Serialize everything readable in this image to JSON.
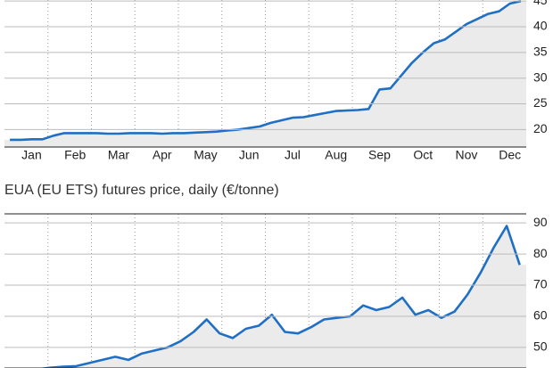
{
  "chart_data": [
    {
      "type": "line",
      "categories": [
        null,
        null,
        "Jan",
        null,
        null,
        null,
        "Feb",
        null,
        null,
        null,
        "Mar",
        null,
        null,
        null,
        "Apr",
        null,
        null,
        null,
        "May",
        null,
        null,
        null,
        "Jun",
        null,
        null,
        null,
        "Jul",
        null,
        null,
        null,
        "Aug",
        null,
        null,
        null,
        "Sep",
        null,
        null,
        null,
        "Oct",
        null,
        null,
        null,
        "Nov",
        null,
        null,
        null,
        "Dec",
        null
      ],
      "series": [
        {
          "color": "#1f6fc5",
          "values": [
            18.0,
            18.0,
            18.1,
            18.1,
            18.8,
            19.3,
            19.3,
            19.3,
            19.3,
            19.2,
            19.2,
            19.3,
            19.3,
            19.3,
            19.2,
            19.3,
            19.3,
            19.4,
            19.5,
            19.6,
            19.8,
            20.0,
            20.3,
            20.6,
            21.3,
            21.8,
            22.3,
            22.4,
            22.8,
            23.2,
            23.6,
            23.7,
            23.8,
            24.0,
            27.8,
            28.0,
            30.5,
            33.0,
            35.0,
            36.8,
            37.5,
            39.0,
            40.5,
            41.5,
            42.5,
            43.0,
            44.5,
            45.0
          ]
        }
      ],
      "ylim": [
        16.6,
        45.2
      ],
      "yticks": [
        20,
        25,
        30,
        35,
        40,
        45
      ],
      "grid": true
    },
    {
      "type": "line",
      "title": "EUA (EU ETS) futures price, daily (€/tonne)",
      "series": [
        {
          "color": "#1f6fc5",
          "values": [
            42,
            42.5,
            43,
            43.5,
            43.8,
            44,
            45,
            46,
            47,
            46,
            48,
            49,
            50,
            52,
            55,
            59,
            54.5,
            53,
            56,
            57,
            60.5,
            55,
            54.5,
            56.5,
            59,
            59.5,
            60,
            63.5,
            62,
            63,
            66,
            60.5,
            62,
            59.5,
            61.5,
            67,
            74,
            82,
            89,
            76.5
          ]
        }
      ],
      "ylim": [
        43.4,
        92.9
      ],
      "yticks": [
        50,
        60,
        70,
        80,
        90
      ],
      "grid": true
    }
  ]
}
